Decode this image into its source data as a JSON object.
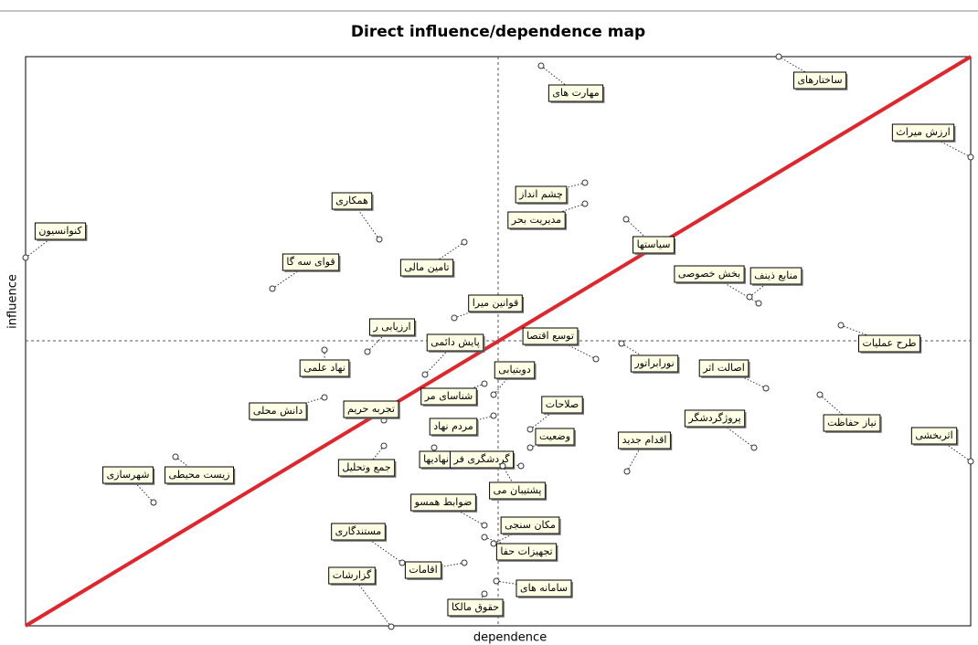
{
  "title": "Direct influence/dependence map",
  "x_axis_label": "dependence",
  "y_axis_label": "influence",
  "nodes": [
    {
      "label": "ساختارهای"
    },
    {
      "label": "مهارت های"
    },
    {
      "label": "ارزش میراث"
    },
    {
      "label": "چشم انداز"
    },
    {
      "label": "مدیریت بحر"
    },
    {
      "label": "همکاری"
    },
    {
      "label": "کنوانسیون"
    },
    {
      "label": "قوای سه گا"
    },
    {
      "label": "تامین مالی"
    },
    {
      "label": "سیاستها"
    },
    {
      "label": "بخش خصوصی"
    },
    {
      "label": "منابع ذینف"
    },
    {
      "label": "قوانین میرا"
    },
    {
      "label": "ارزیابی ر"
    },
    {
      "label": "پایش دائمی"
    },
    {
      "label": "توسع اقتصا"
    },
    {
      "label": "طرح عملیات"
    },
    {
      "label": "نورابراتور"
    },
    {
      "label": "اصالت اثر"
    },
    {
      "label": "نهاد علمی"
    },
    {
      "label": "دوبتیابی"
    },
    {
      "label": "شناسای مر"
    },
    {
      "label": "دانش محلی"
    },
    {
      "label": "تجربه حریم"
    },
    {
      "label": "صلاحات"
    },
    {
      "label": "پروژگردشگر"
    },
    {
      "label": "نیاز حفاظت"
    },
    {
      "label": "مردم نهاد"
    },
    {
      "label": "وضعیت"
    },
    {
      "label": "اقدام جدید"
    },
    {
      "label": "اثربخشی"
    },
    {
      "label": "نهادیها"
    },
    {
      "label": "گردشگری فر"
    },
    {
      "label": "زیست محیطی"
    },
    {
      "label": "شهرسازی"
    },
    {
      "label": "جمع وتحلیل"
    },
    {
      "label": "پشتیبان می"
    },
    {
      "label": "ضوابط همسو"
    },
    {
      "label": "مکان سنجی"
    },
    {
      "label": "مستندگاری"
    },
    {
      "label": "تجهیزات حفا"
    },
    {
      "label": "اقامات"
    },
    {
      "label": "سامانه های"
    },
    {
      "label": "گزارشات"
    },
    {
      "label": "حقوق مالکا"
    }
  ]
}
